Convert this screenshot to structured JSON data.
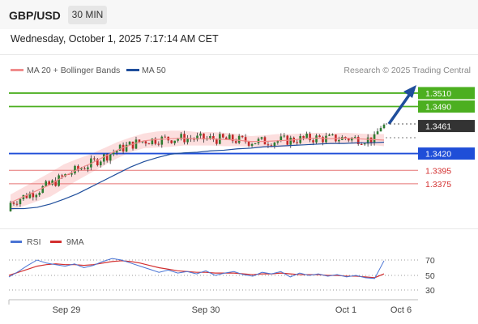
{
  "header": {
    "symbol": "GBP/USD",
    "interval": "30 MIN"
  },
  "timestamp": "Wednesday, October 1, 2025 7:17:14 AM CET",
  "legend": {
    "items": [
      {
        "label": "MA 20 + Bollinger Bands",
        "color": "#f08c8c"
      },
      {
        "label": "MA 50",
        "color": "#1f4e9c"
      }
    ],
    "credit": "Research © 2025 Trading Central"
  },
  "colors": {
    "bull": "#2e7d32",
    "bear": "#c62828",
    "target": "#4caf20",
    "pivot": "#1f4ed8",
    "support": "#e57373",
    "band": "#fbd6d6"
  },
  "levels": [
    {
      "label": "1.3510",
      "value": 1.351,
      "kind": "target"
    },
    {
      "label": "1.3490",
      "value": 1.349,
      "kind": "target"
    },
    {
      "label": "1.3461",
      "value": 1.3461,
      "kind": "current"
    },
    {
      "label": "1.3420",
      "value": 1.342,
      "kind": "pivot"
    },
    {
      "label": "1.3395",
      "value": 1.3395,
      "kind": "support"
    },
    {
      "label": "1.3375",
      "value": 1.3375,
      "kind": "support"
    }
  ],
  "rsi_panel": {
    "legend": [
      {
        "label": "RSI",
        "color": "#4a74d4"
      },
      {
        "label": "9MA",
        "color": "#d32f2f"
      }
    ],
    "ticks": [
      "70",
      "50",
      "30"
    ]
  },
  "x_axis": [
    "Sep 29",
    "Sep 30",
    "Oct 1",
    "Oct 6"
  ],
  "chart_data": {
    "type": "candlestick",
    "ylim": [
      1.3317,
      1.3528
    ],
    "x_axis_labels": [
      "Sep 29",
      "Sep 30",
      "Oct 1",
      "Oct 6"
    ],
    "series": [
      {
        "name": "MA 20 + Bollinger Bands",
        "y": [
          1.3347,
          1.3356,
          1.3365,
          1.3374,
          1.3386,
          1.3396,
          1.3405,
          1.3415,
          1.3425,
          1.3433,
          1.3439,
          1.3441,
          1.3442,
          1.3443,
          1.3442,
          1.3442,
          1.3441,
          1.344,
          1.3438,
          1.3438,
          1.3439,
          1.344,
          1.3442,
          1.3443,
          1.3442,
          1.3443,
          1.3442,
          1.3441,
          1.344
        ]
      },
      {
        "name": "MA 50",
        "y": [
          1.3338,
          1.3338,
          1.334,
          1.3345,
          1.3352,
          1.336,
          1.337,
          1.338,
          1.339,
          1.34,
          1.3408,
          1.3414,
          1.3419,
          1.3421,
          1.3422,
          1.3424,
          1.3425,
          1.3427,
          1.3428,
          1.343,
          1.3431,
          1.3432,
          1.3433,
          1.3434,
          1.3435,
          1.3435,
          1.3436,
          1.3436,
          1.3437
        ]
      },
      {
        "name": "RSI",
        "values": [
          48,
          55,
          63,
          70,
          66,
          64,
          62,
          65,
          60,
          63,
          68,
          72,
          70,
          66,
          62,
          58,
          54,
          57,
          53,
          55,
          52,
          56,
          50,
          53,
          55,
          51,
          49,
          54,
          52,
          55,
          48,
          53,
          50,
          52,
          49,
          51,
          48,
          50,
          47,
          46,
          69
        ]
      },
      {
        "name": "9MA",
        "values": [
          50,
          54,
          58,
          62,
          64,
          65,
          64,
          64,
          63,
          64,
          66,
          68,
          69,
          68,
          66,
          63,
          60,
          58,
          56,
          55,
          54,
          54,
          53,
          53,
          53,
          52,
          51,
          52,
          52,
          53,
          52,
          51,
          51,
          51,
          50,
          50,
          49,
          49,
          48,
          47,
          52
        ]
      }
    ]
  }
}
